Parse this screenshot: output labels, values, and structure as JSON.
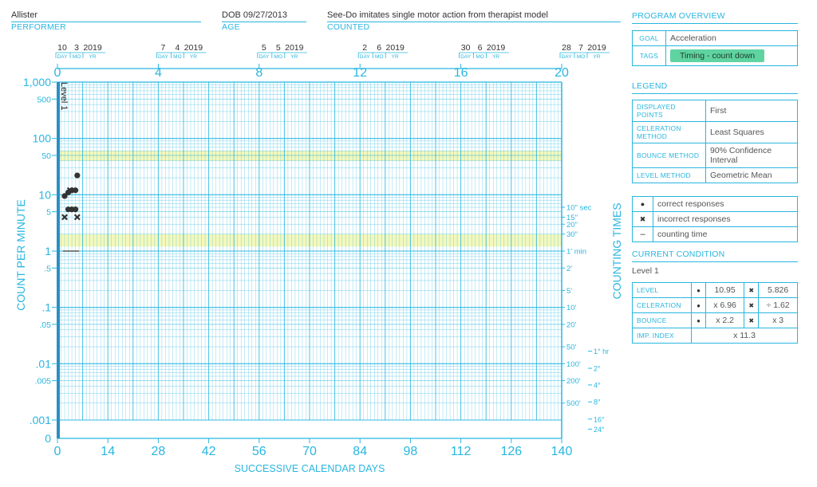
{
  "header": {
    "performer": {
      "value": "Allister",
      "label": "PERFORMER"
    },
    "age": {
      "value": "DOB 09/27/2013",
      "label": "AGE"
    },
    "counted": {
      "value": "See-Do imitates single motor action from therapist model",
      "label": "COUNTED"
    }
  },
  "program_overview": {
    "title": "PROGRAM OVERVIEW",
    "goal_label": "GOAL",
    "goal_value": "Acceleration",
    "tags_label": "TAGS",
    "tag": "Timing - count down"
  },
  "legend": {
    "title": "LEGEND",
    "rows": [
      {
        "label": "DISPLAYED POINTS",
        "value": "First"
      },
      {
        "label": "CELERATION METHOD",
        "value": "Least Squares"
      },
      {
        "label": "BOUNCE METHOD",
        "value": "90% Confidence Interval"
      },
      {
        "label": "LEVEL METHOD",
        "value": "Geometric Mean"
      }
    ],
    "symbols": [
      {
        "icon": "dot-icon",
        "glyph": "●",
        "label": "correct responses"
      },
      {
        "icon": "cross-icon",
        "glyph": "✖",
        "label": "incorrect responses"
      },
      {
        "icon": "dash-icon",
        "glyph": "–",
        "label": "counting time"
      }
    ]
  },
  "current_condition": {
    "title": "CURRENT CONDITION",
    "name": "Level 1",
    "rows": [
      {
        "label": "LEVEL",
        "correct": "10.95",
        "incorrect": "5.826"
      },
      {
        "label": "CELERATION",
        "correct": "x 6.96",
        "incorrect": "÷ 1.62"
      },
      {
        "label": "BOUNCE",
        "correct": "x 2.2",
        "incorrect": "x 3"
      }
    ],
    "imp_label": "IMP. INDEX",
    "imp_value": "x 11.3"
  },
  "chart_data": {
    "type": "scatter",
    "scale": "log",
    "xlabel": "SUCCESSIVE CALENDAR DAYS",
    "ylabel": "COUNT PER MINUTE",
    "right_label": "COUNTING TIMES",
    "xlim": [
      0,
      140
    ],
    "ylim": [
      0.001,
      1000
    ],
    "x_ticks": [
      "0",
      "14",
      "28",
      "42",
      "56",
      "70",
      "84",
      "98",
      "112",
      "126",
      "140"
    ],
    "x_tick_values": [
      0,
      14,
      28,
      42,
      56,
      70,
      84,
      98,
      112,
      126,
      140
    ],
    "top_ticks": [
      "0",
      "4",
      "8",
      "12",
      "16",
      "20"
    ],
    "top_tick_values": [
      0,
      28,
      56,
      84,
      112,
      140
    ],
    "top_dates": [
      {
        "day": "10",
        "mo": "3",
        "yr": "2019",
        "x": 0
      },
      {
        "day": "7",
        "mo": "4",
        "yr": "2019",
        "x": 28
      },
      {
        "day": "5",
        "mo": "5",
        "yr": "2019",
        "x": 56
      },
      {
        "day": "2",
        "mo": "6",
        "yr": "2019",
        "x": 84
      },
      {
        "day": "30",
        "mo": "6",
        "yr": "2019",
        "x": 112
      },
      {
        "day": "28",
        "mo": "7",
        "yr": "2019",
        "x": 140
      }
    ],
    "date_sublabels": [
      "DAY",
      "MO",
      "YR"
    ],
    "y_ticks": [
      {
        "label": "1,000",
        "value": 1000,
        "big": true
      },
      {
        "label": "500",
        "value": 500,
        "big": false
      },
      {
        "label": "100",
        "value": 100,
        "big": true
      },
      {
        "label": "50",
        "value": 50,
        "big": false
      },
      {
        "label": "10",
        "value": 10,
        "big": true
      },
      {
        "label": "5",
        "value": 5,
        "big": false
      },
      {
        "label": "1",
        "value": 1,
        "big": true
      },
      {
        "label": ".5",
        "value": 0.5,
        "big": false
      },
      {
        "label": ".1",
        "value": 0.1,
        "big": true
      },
      {
        "label": ".05",
        "value": 0.05,
        "big": false
      },
      {
        "label": ".01",
        "value": 0.01,
        "big": true
      },
      {
        "label": ".005",
        "value": 0.005,
        "big": false
      },
      {
        "label": ".001",
        "value": 0.001,
        "big": true
      }
    ],
    "y_zero_label": "0",
    "counting_times": [
      {
        "label": "10\" sec",
        "value": 6
      },
      {
        "label": "15\"",
        "value": 4
      },
      {
        "label": "20\"",
        "value": 3
      },
      {
        "label": "30\"",
        "value": 2
      },
      {
        "label": "1' min",
        "value": 1
      },
      {
        "label": "2'",
        "value": 0.5
      },
      {
        "label": "5'",
        "value": 0.2
      },
      {
        "label": "10'",
        "value": 0.1
      },
      {
        "label": "20'",
        "value": 0.05
      },
      {
        "label": "50'",
        "value": 0.02
      },
      {
        "label": "100'",
        "value": 0.01
      },
      {
        "label": "200'",
        "value": 0.005
      },
      {
        "label": "500'",
        "value": 0.002
      }
    ],
    "counting_hours": [
      {
        "label": "1° hr",
        "value": 0.0167
      },
      {
        "label": "2°",
        "value": 0.0083
      },
      {
        "label": "4°",
        "value": 0.0042
      },
      {
        "label": "8°",
        "value": 0.0021
      },
      {
        "label": "16°",
        "value": 0.00104
      },
      {
        "label": "24°",
        "value": 0.00069
      }
    ],
    "bands": [
      {
        "from": 40,
        "to": 60
      },
      {
        "from": 1.2,
        "to": 2
      }
    ],
    "phase_label": "Level 1",
    "correct": [
      {
        "x": 2,
        "y": 9.5
      },
      {
        "x": 3,
        "y": 11
      },
      {
        "x": 3,
        "y": 5.5
      },
      {
        "x": 4,
        "y": 12
      },
      {
        "x": 4,
        "y": 5.5
      },
      {
        "x": 5,
        "y": 12
      },
      {
        "x": 5,
        "y": 5.5
      },
      {
        "x": 5.5,
        "y": 22
      }
    ],
    "incorrect": [
      {
        "x": 2,
        "y": 4
      },
      {
        "x": 3.5,
        "y": 12
      },
      {
        "x": 4.5,
        "y": 5.5
      },
      {
        "x": 5.5,
        "y": 4
      }
    ],
    "counting_time": {
      "x1": 1.5,
      "x2": 6,
      "y": 1
    }
  }
}
